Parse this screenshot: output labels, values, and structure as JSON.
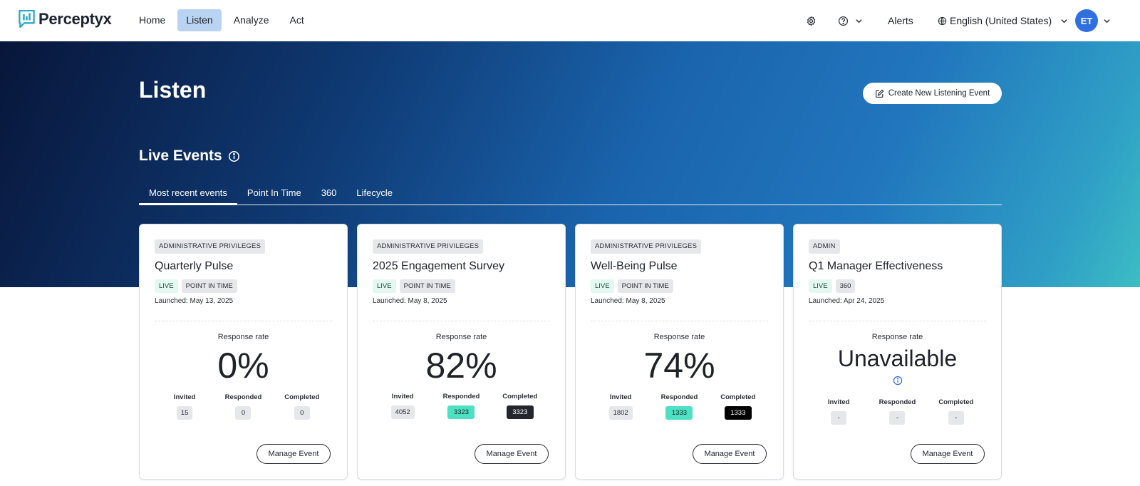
{
  "app": {
    "brand": "Perceptyx"
  },
  "nav": {
    "items": [
      "Home",
      "Listen",
      "Analyze",
      "Act"
    ],
    "active": "Listen"
  },
  "header_right": {
    "alerts_label": "Alerts",
    "language": "English (United States)",
    "avatar_initials": "ET",
    "icons": [
      "gear-icon",
      "help-icon",
      "chevron-down-icon",
      "globe-icon"
    ]
  },
  "page": {
    "title": "Listen",
    "create_button": "Create New Listening Event",
    "section_title": "Live Events"
  },
  "tabs": [
    "Most recent events",
    "Point In Time",
    "360",
    "Lifecycle"
  ],
  "active_tab": "Most recent events",
  "colors": {
    "accent_blue": "#2f6fe0",
    "teal": "#4ee0c3",
    "hero_dark": "#08163a",
    "hero_teal": "#3cbdc3"
  },
  "cards": [
    {
      "tag": "ADMINISTRATIVE PRIVILEGES",
      "title": "Quarterly Pulse",
      "status": "LIVE",
      "type": "POINT IN TIME",
      "launched": "Launched: May 13, 2025",
      "response_label": "Response rate",
      "response_rate": "0%",
      "stats": [
        {
          "label": "Invited",
          "value": "15"
        },
        {
          "label": "Responded",
          "value": "0"
        },
        {
          "label": "Completed",
          "value": "0"
        }
      ],
      "manage_label": "Manage Event"
    },
    {
      "tag": "ADMINISTRATIVE PRIVILEGES",
      "title": "2025 Engagement Survey",
      "status": "LIVE",
      "type": "POINT IN TIME",
      "launched": "Launched: May 8, 2025",
      "response_label": "Response rate",
      "response_rate": "82%",
      "stats": [
        {
          "label": "Invited",
          "value": "4052"
        },
        {
          "label": "Responded",
          "value": "3323"
        },
        {
          "label": "Completed",
          "value": "3323"
        }
      ],
      "manage_label": "Manage Event"
    },
    {
      "tag": "ADMINISTRATIVE PRIVILEGES",
      "title": "Well-Being Pulse",
      "status": "LIVE",
      "type": "POINT IN TIME",
      "launched": "Launched: May 8, 2025",
      "response_label": "Response rate",
      "response_rate": "74%",
      "stats": [
        {
          "label": "Invited",
          "value": "1802"
        },
        {
          "label": "Responded",
          "value": "1333"
        },
        {
          "label": "Completed",
          "value": "1333"
        }
      ],
      "manage_label": "Manage Event"
    },
    {
      "tag": "ADMIN",
      "title": "Q1 Manager Effectiveness",
      "status": "LIVE",
      "type": "360",
      "launched": "Launched: Apr 24, 2025",
      "response_label": "Response rate",
      "response_rate": "Unavailable",
      "stats": [
        {
          "label": "Invited",
          "value": "-"
        },
        {
          "label": "Responded",
          "value": "-"
        },
        {
          "label": "Completed",
          "value": "-"
        }
      ],
      "manage_label": "Manage Event"
    }
  ]
}
